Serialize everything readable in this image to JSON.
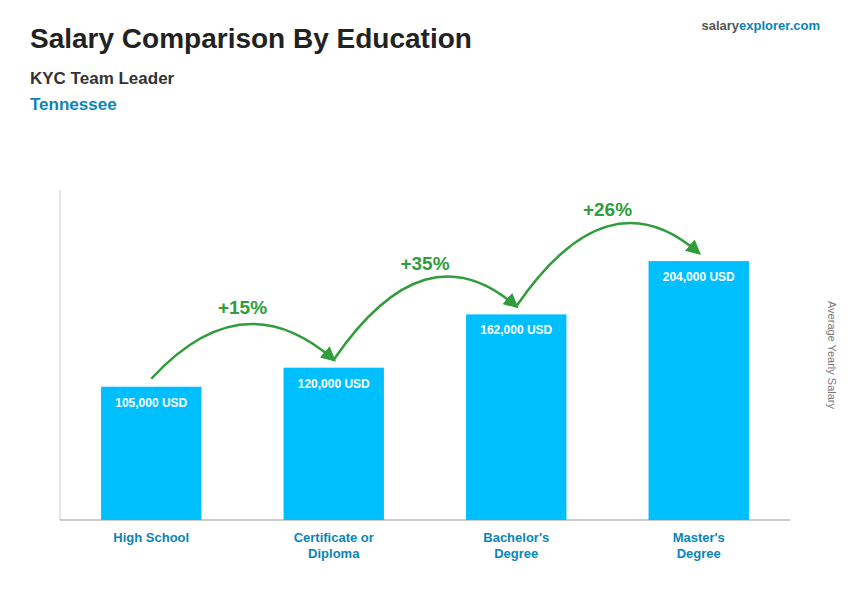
{
  "chart_data": {
    "type": "bar",
    "title": "Salary Comparison By Education",
    "subtitle": [
      "KYC Team Leader",
      "Tennessee"
    ],
    "watermark": [
      "salary",
      "explorer.com"
    ],
    "y_label": "Average Yearly Salary",
    "categories": [
      "High School",
      "Certificate or\nDiploma",
      "Bachelor's\nDegree",
      "Master's\nDegree"
    ],
    "values": [
      105000,
      120000,
      162000,
      204000
    ],
    "value_labels": [
      "105,000 USD",
      "120,000 USD",
      "162,000 USD",
      "204,000 USD"
    ],
    "annotations": [
      "+15%",
      "+35%",
      "+26%"
    ],
    "color": "#00BFFF",
    "ylim": [
      0,
      260000
    ],
    "grid": false,
    "data_labels": true,
    "tick_labels": "x"
  }
}
